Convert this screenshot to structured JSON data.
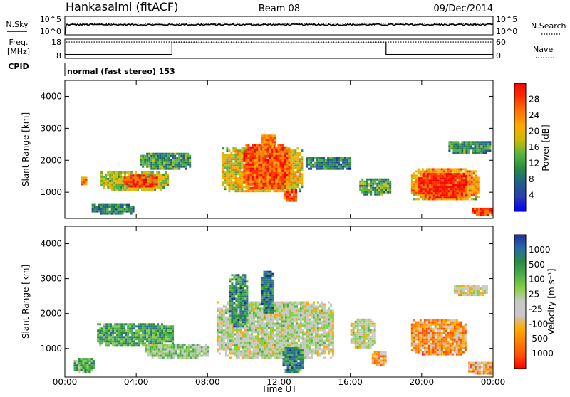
{
  "header": {
    "station": "Hankasalmi (fitACF)",
    "beam": "Beam 08",
    "date": "09/Dec/2014"
  },
  "left_labels": {
    "nsky": "N.Sky",
    "freq": "Freq.",
    "freq_unit": "[MHz]",
    "cpid": "CPID"
  },
  "right_labels": {
    "nsearch": "N.Search",
    "nave": "Nave"
  },
  "mode_label": "normal (fast stereo) 153",
  "chart_data": [
    {
      "type": "line",
      "name": "noise",
      "left_axis_ticks": [
        "10^5",
        "10^0"
      ],
      "right_axis_ticks": [
        "10^5",
        "10^0"
      ],
      "sky_level": 0.55,
      "search_level": 0.62
    },
    {
      "type": "line",
      "name": "frequency-nave",
      "left_axis_ticks": [
        "18",
        "8"
      ],
      "right_axis_ticks": [
        "60",
        "0"
      ],
      "freq_x": [
        "00:00",
        "06:00",
        "06:00",
        "18:00",
        "18:00",
        "24:00"
      ],
      "nave_levels": [
        0.2,
        0.2,
        0.8,
        0.8,
        0.2,
        0.2
      ],
      "freq_dotted_level": 0.85
    },
    {
      "type": "heatmap",
      "name": "power",
      "ylabel": "Slant Range [km]",
      "y_ticks": [
        "4000",
        "3000",
        "2000",
        "1000"
      ],
      "y_values": [
        4000,
        3000,
        2000,
        1000
      ],
      "ylim": [
        180,
        4500
      ],
      "x_range": [
        0,
        24
      ],
      "colorbar_label": "Power [dB]",
      "colorbar_ticks": [
        "28",
        "24",
        "20",
        "16",
        "12",
        "8",
        "4"
      ],
      "colorbar_colors": [
        "#ff0000",
        "#ff3300",
        "#ff7700",
        "#ffaa00",
        "#ccbb00",
        "#55b440",
        "#2a8a44",
        "#1f5f8c",
        "#2a3db0",
        "#0000ff"
      ],
      "regions": [
        {
          "x0": 0.9,
          "x1": 1.2,
          "y0": 1150,
          "y1": 1450,
          "level": 0.7
        },
        {
          "x0": 2.0,
          "x1": 5.8,
          "y0": 1050,
          "y1": 1600,
          "level": 0.55
        },
        {
          "x0": 3.3,
          "x1": 5.2,
          "y0": 1150,
          "y1": 1500,
          "level": 0.9
        },
        {
          "x0": 4.2,
          "x1": 7.0,
          "y0": 1700,
          "y1": 2200,
          "level": 0.35
        },
        {
          "x0": 1.5,
          "x1": 3.8,
          "y0": 300,
          "y1": 600,
          "level": 0.3
        },
        {
          "x0": 8.8,
          "x1": 13.3,
          "y0": 1000,
          "y1": 2400,
          "level": 0.6
        },
        {
          "x0": 10.0,
          "x1": 12.6,
          "y0": 1100,
          "y1": 2500,
          "level": 0.85
        },
        {
          "x0": 12.3,
          "x1": 13.0,
          "y0": 700,
          "y1": 1100,
          "level": 0.85
        },
        {
          "x0": 11.0,
          "x1": 11.8,
          "y0": 2400,
          "y1": 2800,
          "level": 0.75
        },
        {
          "x0": 13.5,
          "x1": 16.0,
          "y0": 1700,
          "y1": 2100,
          "level": 0.3
        },
        {
          "x0": 16.5,
          "x1": 18.2,
          "y0": 900,
          "y1": 1400,
          "level": 0.4
        },
        {
          "x0": 19.4,
          "x1": 23.2,
          "y0": 750,
          "y1": 1700,
          "level": 0.7
        },
        {
          "x0": 19.8,
          "x1": 22.5,
          "y0": 800,
          "y1": 1550,
          "level": 0.95
        },
        {
          "x0": 21.5,
          "x1": 23.8,
          "y0": 2200,
          "y1": 2600,
          "level": 0.35
        },
        {
          "x0": 22.8,
          "x1": 24.0,
          "y0": 250,
          "y1": 500,
          "level": 0.9
        }
      ]
    },
    {
      "type": "heatmap",
      "name": "velocity",
      "ylabel": "Slant Range [km]",
      "y_ticks": [
        "4000",
        "3000",
        "2000",
        "1000"
      ],
      "y_values": [
        4000,
        3000,
        2000,
        1000
      ],
      "ylim": [
        180,
        4500
      ],
      "x_range": [
        0,
        24
      ],
      "xlabel": "Time UT",
      "x_ticks": [
        "00:00",
        "04:00",
        "08:00",
        "12:00",
        "16:00",
        "20:00",
        "00:00"
      ],
      "x_values": [
        0,
        4,
        8,
        12,
        16,
        20,
        24
      ],
      "colorbar_label": "Velocity [m s⁻¹]",
      "colorbar_ticks": [
        "1000",
        "500",
        "100",
        "25",
        "-25",
        "-100",
        "-500",
        "-1000"
      ],
      "colorbar_colors": [
        "#1c2fa0",
        "#2a6aa8",
        "#2a8a44",
        "#4cae4c",
        "#88d040",
        "#c8c8c8",
        "#c8c8c8",
        "#ffaa00",
        "#ff7f00",
        "#ff5000",
        "#ff0000"
      ],
      "regions": [
        {
          "x0": 1.8,
          "x1": 6.0,
          "y0": 1050,
          "y1": 1700,
          "level": 0.75
        },
        {
          "x0": 4.5,
          "x1": 8.0,
          "y0": 700,
          "y1": 1100,
          "level": 0.55
        },
        {
          "x0": 8.5,
          "x1": 15.0,
          "y0": 700,
          "y1": 2300,
          "level": 0.5
        },
        {
          "x0": 9.2,
          "x1": 10.2,
          "y0": 1600,
          "y1": 3100,
          "level": 0.8
        },
        {
          "x0": 11.0,
          "x1": 11.7,
          "y0": 2000,
          "y1": 3200,
          "level": 0.85
        },
        {
          "x0": 12.2,
          "x1": 13.3,
          "y0": 300,
          "y1": 1000,
          "level": 0.82
        },
        {
          "x0": 16.0,
          "x1": 17.4,
          "y0": 1000,
          "y1": 1800,
          "level": 0.5
        },
        {
          "x0": 17.2,
          "x1": 18.0,
          "y0": 500,
          "y1": 900,
          "level": 0.3
        },
        {
          "x0": 19.4,
          "x1": 22.5,
          "y0": 800,
          "y1": 1800,
          "level": 0.25
        },
        {
          "x0": 21.8,
          "x1": 23.6,
          "y0": 2500,
          "y1": 2800,
          "level": 0.45
        },
        {
          "x0": 22.6,
          "x1": 24.0,
          "y0": 250,
          "y1": 600,
          "level": 0.3
        },
        {
          "x0": 0.5,
          "x1": 1.6,
          "y0": 300,
          "y1": 700,
          "level": 0.7
        }
      ]
    }
  ]
}
